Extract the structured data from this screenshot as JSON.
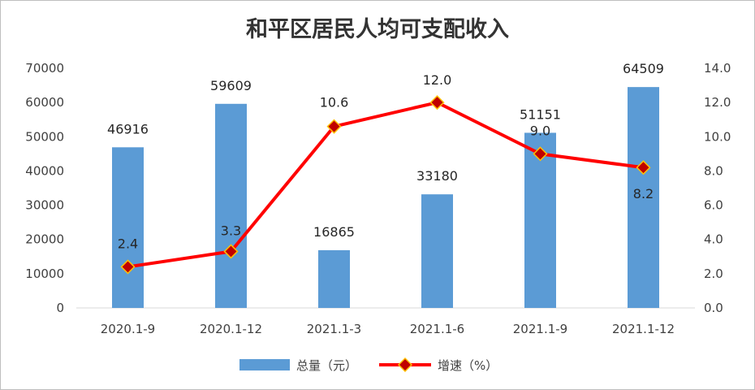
{
  "chart_data": {
    "type": "bar",
    "title": "和平区居民人均可支配收入",
    "categories": [
      "2020.1-9",
      "2020.1-12",
      "2021.1-3",
      "2021.1-6",
      "2021.1-9",
      "2021.1-12"
    ],
    "series": [
      {
        "name": "总量（元）",
        "type": "bar",
        "axis": "left",
        "color": "#5B9BD5",
        "values": [
          46916,
          59609,
          16865,
          33180,
          51151,
          64509
        ]
      },
      {
        "name": "增速（%）",
        "type": "line",
        "axis": "right",
        "color": "#FF0000",
        "marker_color": "#C00000",
        "values": [
          2.4,
          3.3,
          10.6,
          12.0,
          9.0,
          8.2
        ]
      }
    ],
    "y_left": {
      "min": 0,
      "max": 70000,
      "ticks": [
        "0",
        "10000",
        "20000",
        "30000",
        "40000",
        "50000",
        "60000",
        "70000"
      ]
    },
    "y_right": {
      "min": 0,
      "max": 14,
      "ticks": [
        "0.0",
        "2.0",
        "4.0",
        "6.0",
        "8.0",
        "10.0",
        "12.0",
        "14.0"
      ]
    },
    "bar_labels": [
      "46916",
      "59609",
      "16865",
      "33180",
      "51151",
      "64509"
    ],
    "line_labels": [
      "2.4",
      "3.3",
      "10.6",
      "12.0",
      "9.0",
      "8.2"
    ],
    "grid": false,
    "legend_position": "bottom"
  }
}
